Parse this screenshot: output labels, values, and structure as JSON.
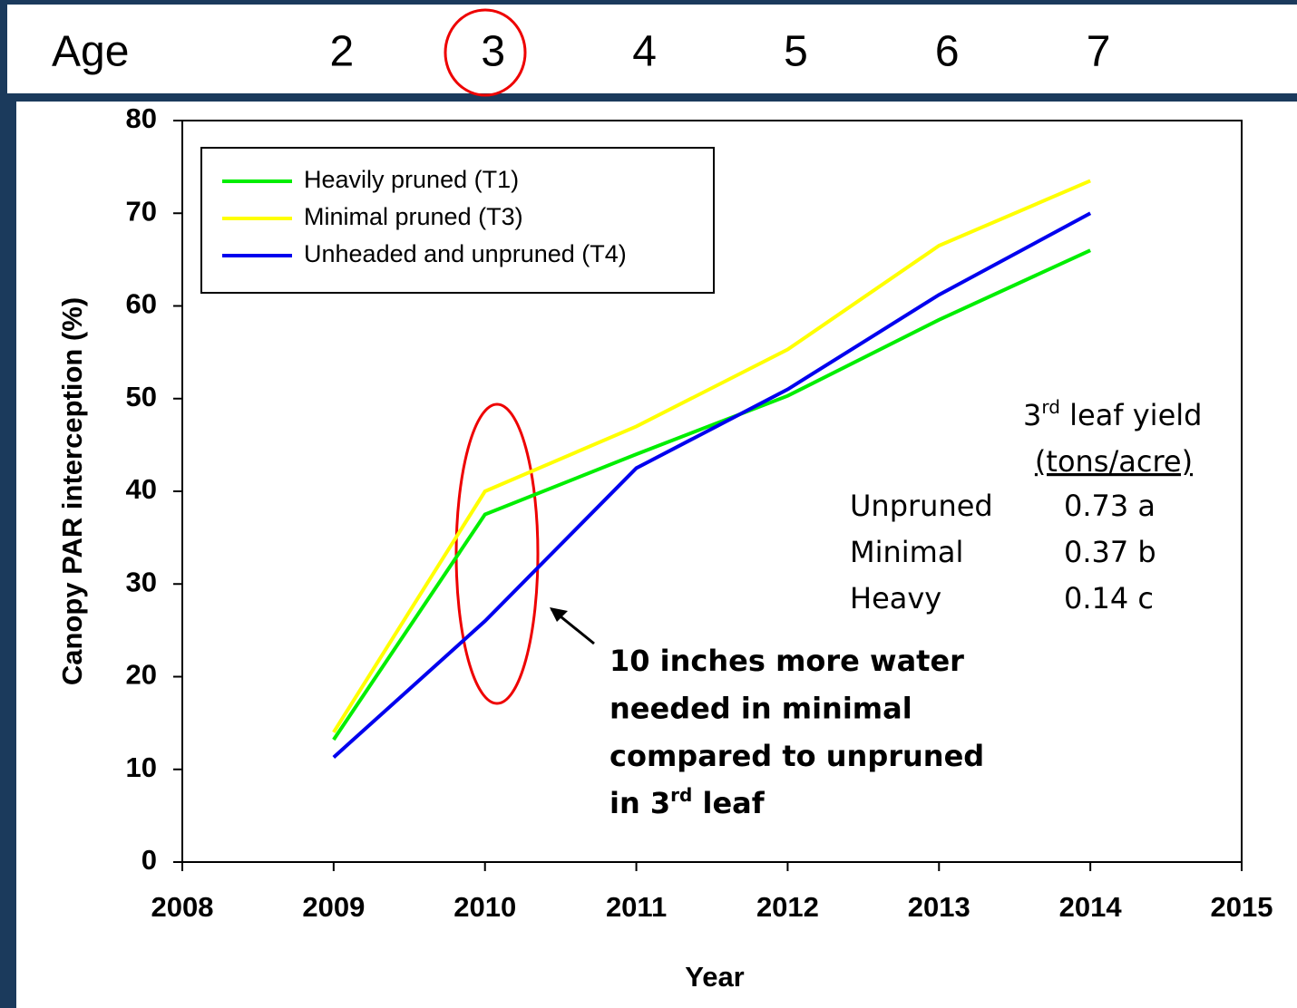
{
  "age_header": {
    "label": "Age",
    "ages": [
      2,
      3,
      4,
      5,
      6,
      7
    ]
  },
  "chart_data": {
    "type": "line",
    "x_label": "Year",
    "y_label": "Canopy PAR interception (%)",
    "x": [
      2009,
      2010,
      2011,
      2012,
      2013,
      2014
    ],
    "series": [
      {
        "name": "Heavily pruned (T1)",
        "color": "#00ee00",
        "values": [
          13.2,
          37.5,
          44,
          50.3,
          58.5,
          66
        ]
      },
      {
        "name": "Minimal pruned (T3)",
        "color": "#ffff00",
        "values": [
          14,
          40,
          47,
          55.3,
          66.5,
          73.5
        ]
      },
      {
        "name": "Unheaded and unpruned (T4)",
        "color": "#0000ee",
        "values": [
          11.3,
          26,
          42.5,
          51,
          61.2,
          70
        ]
      }
    ],
    "xlim": [
      2008,
      2015
    ],
    "xticks": [
      2008,
      2009,
      2010,
      2011,
      2012,
      2013,
      2014,
      2015
    ],
    "ylim": [
      0,
      80
    ],
    "yticks": [
      0,
      10,
      20,
      30,
      40,
      50,
      60,
      70,
      80
    ],
    "grid": false,
    "legend": "upper left"
  },
  "yield_table": {
    "title": [
      "3",
      "rd",
      " leaf yield"
    ],
    "unit": "(tons/acre)",
    "rows": [
      [
        "Unpruned",
        "0.73 a"
      ],
      [
        "Minimal",
        "0.37 b"
      ],
      [
        "Heavy",
        "0.14 c"
      ]
    ]
  },
  "note": {
    "lines": [
      "10 inches more water",
      "needed in minimal",
      "compared to unpruned"
    ],
    "last": [
      "in 3",
      "rd",
      " leaf"
    ]
  }
}
